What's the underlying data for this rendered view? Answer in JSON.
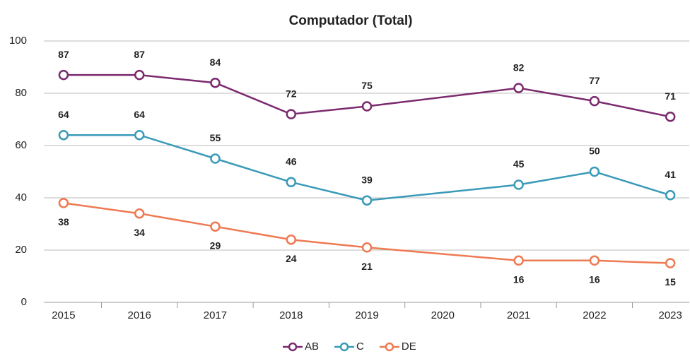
{
  "chart_data": {
    "type": "line",
    "title": "Computador (Total)",
    "x": [
      2015,
      2016,
      2017,
      2018,
      2019,
      2021,
      2022,
      2023
    ],
    "xlim": [
      2014.74,
      2023.25
    ],
    "xticks": [
      2015,
      2016,
      2017,
      2018,
      2019,
      2020,
      2021,
      2022,
      2023
    ],
    "ylim": [
      0,
      100
    ],
    "yticks": [
      0,
      20,
      40,
      60,
      80,
      100
    ],
    "grid": true,
    "legend": "bottom",
    "series": [
      {
        "name": "AB",
        "color": "#7b2a6e",
        "values": [
          87,
          87,
          84,
          72,
          75,
          82,
          77,
          71
        ]
      },
      {
        "name": "C",
        "color": "#3a9ab8",
        "values": [
          64,
          64,
          55,
          46,
          39,
          45,
          50,
          41
        ]
      },
      {
        "name": "DE",
        "color": "#ee7a52",
        "values": [
          38,
          34,
          29,
          24,
          21,
          16,
          16,
          15
        ]
      }
    ]
  }
}
